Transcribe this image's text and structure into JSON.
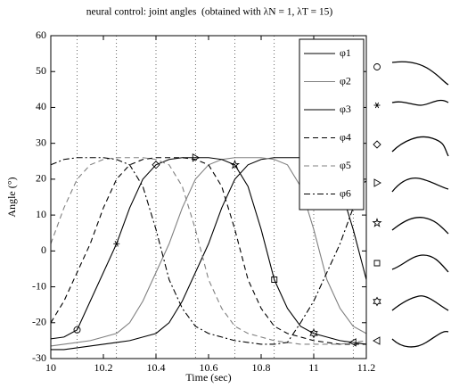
{
  "chart_data": {
    "type": "line",
    "title": "neural control: joint angles  (obtained with λN = 1, λT = 15)",
    "xlabel": "Time (sec)",
    "ylabel": "Angle (°)",
    "x": [
      10,
      10.05,
      10.1,
      10.15,
      10.2,
      10.25,
      10.3,
      10.35,
      10.4,
      10.45,
      10.5,
      10.55,
      10.6,
      10.65,
      10.7,
      10.75,
      10.8,
      10.85,
      10.9,
      10.95,
      11,
      11.05,
      11.1,
      11.15,
      11.2
    ],
    "xlim": [
      10,
      11.2
    ],
    "xticks": [
      10,
      10.2,
      10.4,
      10.6,
      10.8,
      11,
      11.2
    ],
    "ylim": [
      -30,
      60
    ],
    "yticks": [
      -30,
      -20,
      -10,
      0,
      10,
      20,
      30,
      40,
      50,
      60
    ],
    "legend": "upper right",
    "series": [
      {
        "name": "φ1",
        "color": "#000000",
        "linestyle": "solid",
        "values": [
          -27.5,
          -27.5,
          -27,
          -26.5,
          -26,
          -25.5,
          -25,
          -24,
          -23,
          -20,
          -14,
          -6,
          2,
          12,
          20,
          24,
          25.5,
          26,
          26,
          26,
          25.5,
          24,
          18,
          6,
          -8
        ]
      },
      {
        "name": "φ2",
        "color": "#808080",
        "linestyle": "solid",
        "values": [
          -26.5,
          -26,
          -25.5,
          -25,
          -24,
          -23,
          -20,
          -14,
          -6,
          2,
          12,
          20,
          24,
          25.5,
          26,
          26,
          26,
          25.5,
          24,
          18,
          6,
          -8,
          -16,
          -21,
          -23
        ]
      },
      {
        "name": "φ3",
        "color": "#000000",
        "linestyle": "solid",
        "values": [
          -24.5,
          -24,
          -22,
          -14,
          -6,
          2,
          12,
          20,
          24,
          25.5,
          26,
          26,
          26,
          25.5,
          24,
          18,
          6,
          -8,
          -16,
          -21,
          -23,
          -24,
          -25,
          -25.5,
          -26
        ]
      },
      {
        "name": "φ4",
        "color": "#000000",
        "linestyle": "dashed",
        "values": [
          -20,
          -14,
          -6,
          2,
          12,
          20,
          24,
          25.5,
          26,
          26,
          26,
          25.5,
          24,
          18,
          6,
          -8,
          -16,
          -21,
          -23,
          -24,
          -25,
          -25.5,
          -26,
          -26,
          -26
        ]
      },
      {
        "name": "φ5",
        "color": "#808080",
        "linestyle": "dashed",
        "values": [
          2,
          12,
          20,
          24,
          25.5,
          26,
          26,
          26,
          25.5,
          24,
          18,
          6,
          -8,
          -16,
          -21,
          -23,
          -24,
          -25,
          -25.5,
          -26,
          -26,
          -26,
          -26,
          -25.5,
          -25
        ]
      },
      {
        "name": "φ6",
        "color": "#000000",
        "linestyle": "dashdot",
        "values": [
          24,
          25.5,
          26,
          26,
          26,
          25.5,
          24,
          18,
          6,
          -8,
          -16,
          -21,
          -23,
          -24,
          -25,
          -25.5,
          -26,
          -26,
          -25.5,
          -20,
          -14,
          -6,
          2,
          12,
          20
        ]
      }
    ],
    "markers": {
      "x": [
        10.1,
        10.25,
        10.4,
        10.55,
        10.7,
        10.85,
        11,
        11.15
      ],
      "y": [
        -22,
        2,
        24,
        26,
        24,
        -8,
        -23,
        -25.5
      ]
    }
  }
}
